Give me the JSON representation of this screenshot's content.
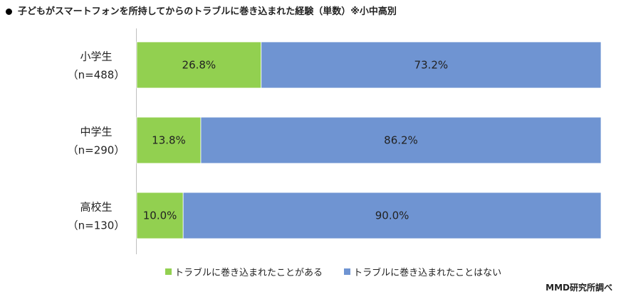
{
  "title": "子どもがスマートフォンを所持してからのトラブルに巻き込まれた経験（単数）※小中高別",
  "source": "MMD研究所調べ",
  "colors": {
    "series1": "#92d050",
    "series2": "#6f94d2",
    "axis": "#bfbfbf"
  },
  "chart_data": {
    "type": "bar",
    "orientation": "horizontal",
    "stacked": true,
    "percent": true,
    "categories": [
      {
        "name": "小学生",
        "n": "（n=488）"
      },
      {
        "name": "中学生",
        "n": "（n=290）"
      },
      {
        "name": "高校生",
        "n": "（n=130）"
      }
    ],
    "series": [
      {
        "name": "トラブルに巻き込まれたことがある",
        "values": [
          26.8,
          13.8,
          10.0
        ],
        "labels": [
          "26.8%",
          "13.8%",
          "10.0%"
        ]
      },
      {
        "name": "トラブルに巻き込まれたことはない",
        "values": [
          73.2,
          86.2,
          90.0
        ],
        "labels": [
          "73.2%",
          "86.2%",
          "90.0%"
        ]
      }
    ],
    "xlim": [
      0,
      100
    ],
    "legend_position": "bottom"
  }
}
